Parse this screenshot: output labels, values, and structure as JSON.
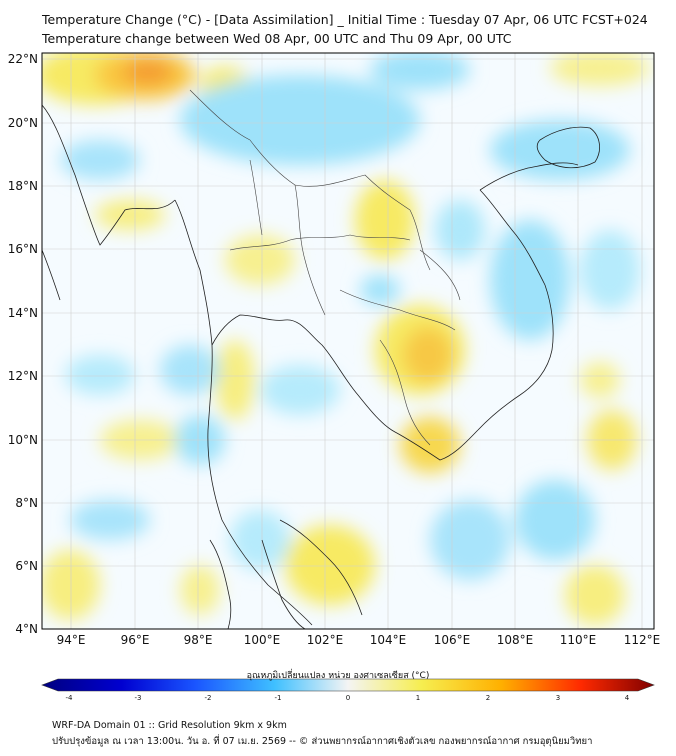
{
  "title_line1": "Temperature Change (°C) - [Data Assimilation] _ Initial Time : Tuesday 07 Apr, 06 UTC FCST+024",
  "title_line2": "Temperature change between Wed 08 Apr, 00 UTC and Thu 09 Apr, 00 UTC",
  "lat_labels": [
    "22°N",
    "20°N",
    "18°N",
    "16°N",
    "14°N",
    "12°N",
    "10°N",
    "8°N",
    "6°N",
    "4°N"
  ],
  "lon_labels": [
    "94°E",
    "96°E",
    "98°E",
    "100°E",
    "102°E",
    "104°E",
    "106°E",
    "108°E",
    "110°E",
    "112°E"
  ],
  "colorbar": {
    "title": "อุณหภูมิเปลี่ยนแปลง หน่วย องศาเซลเซียส (°C)",
    "ticks": [
      "-4",
      "-3",
      "-2",
      "-1",
      "0",
      "1",
      "2",
      "3",
      "4"
    ],
    "colors": [
      "#000080",
      "#0000d0",
      "#1a55ff",
      "#3fc0ff",
      "#f4f4f4",
      "#f6ee50",
      "#ffb000",
      "#ff2a00",
      "#800000"
    ]
  },
  "footer_line1": "WRF-DA Domain 01 :: Grid Resolution 9km x 9km",
  "footer_line2": "ปรับปรุงข้อมูล ณ เวลา 13:00น. วัน อ. ที่ 07 เม.ย. 2569 -- © ส่วนพยากรณ์อากาศเชิงตัวเลข กองพยากรณ์อากาศ กรมอุตุนิยมวิทยา"
}
